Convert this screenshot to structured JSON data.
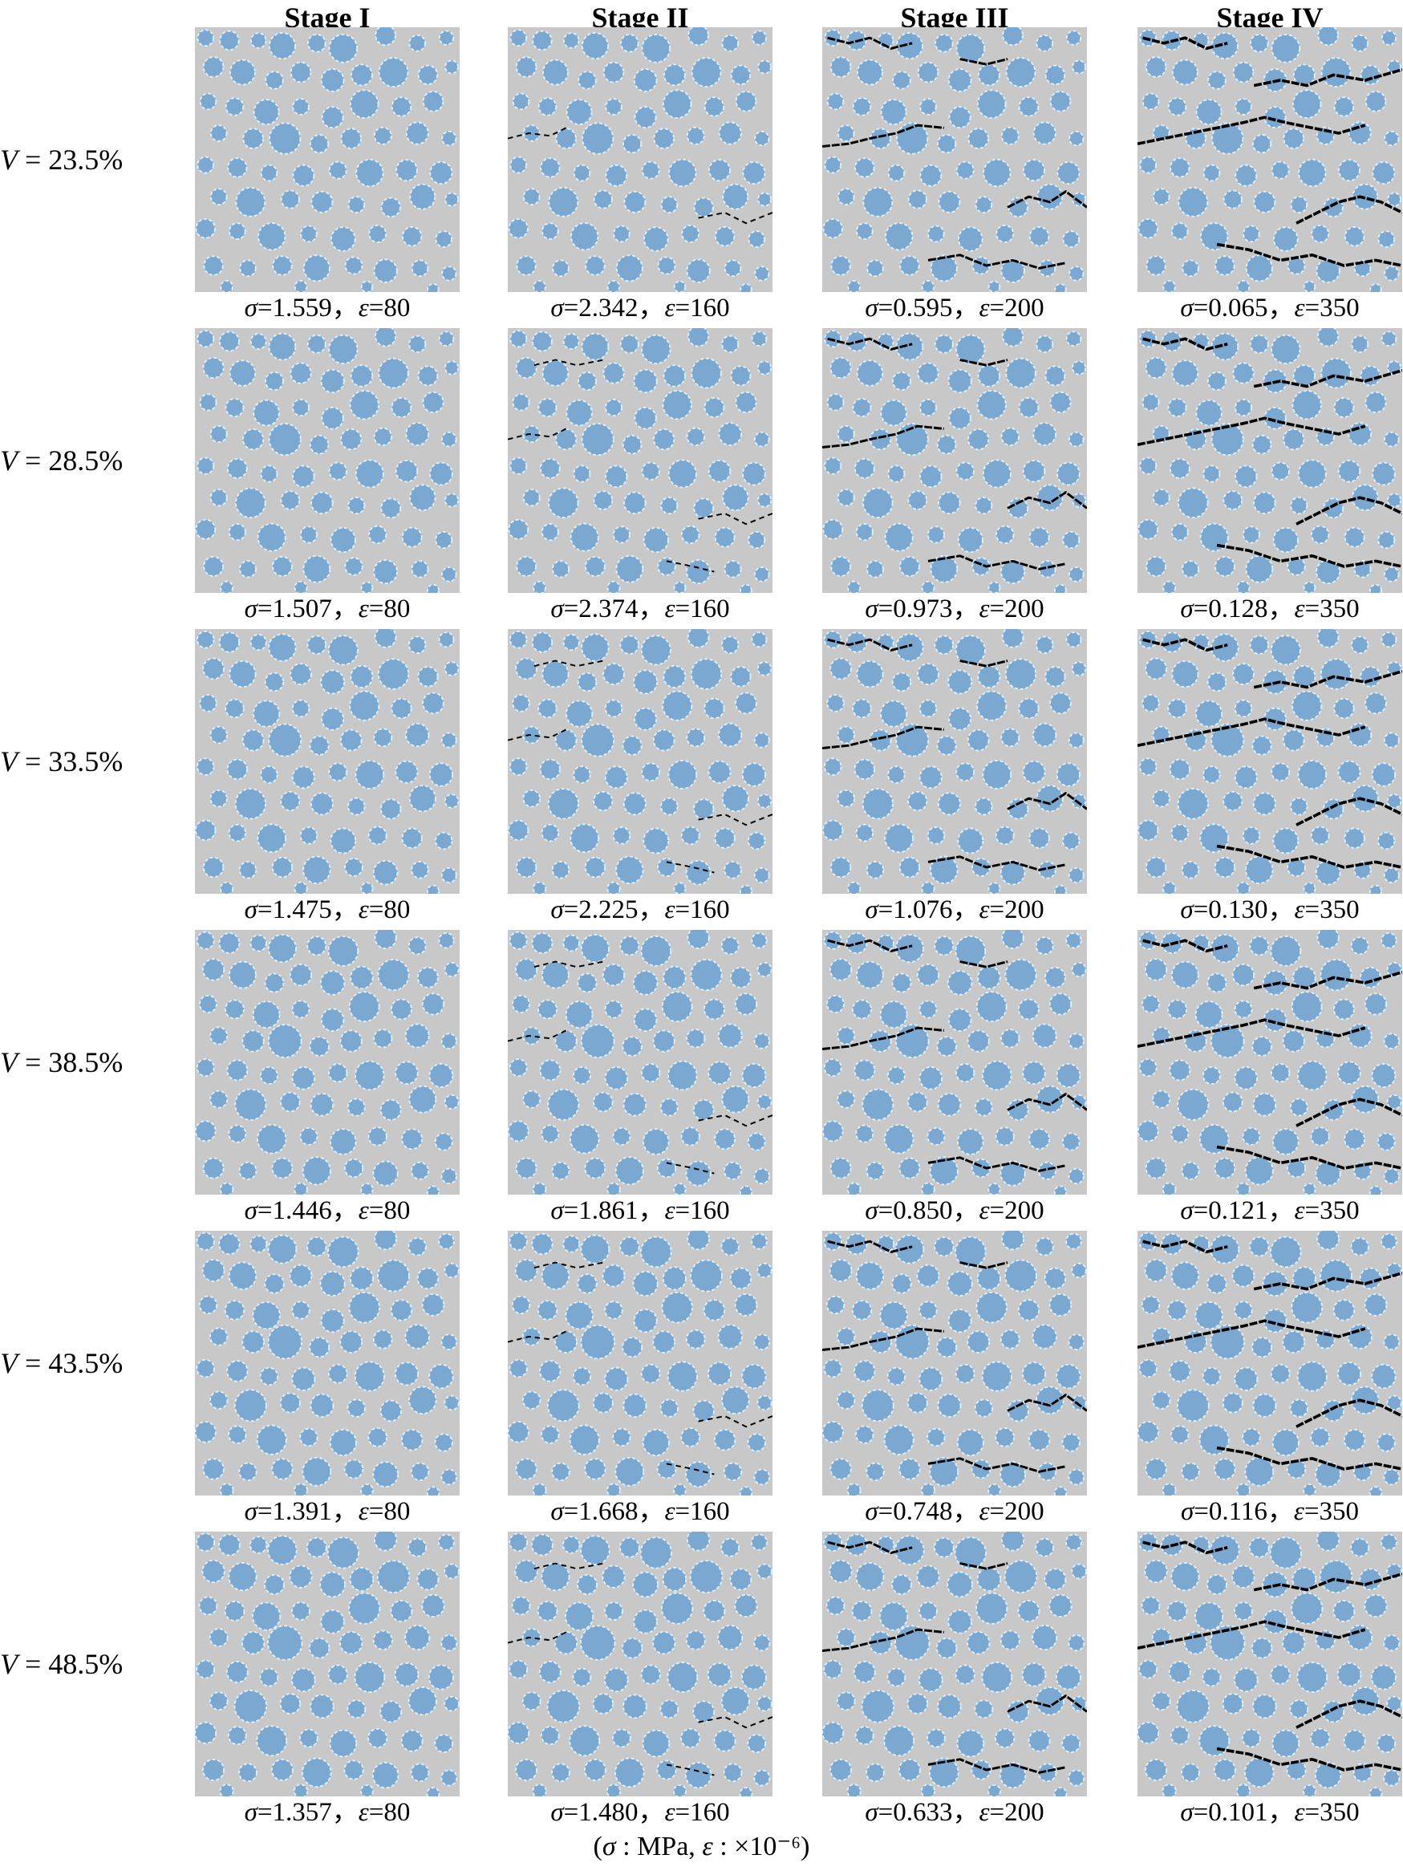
{
  "headers": [
    "Stage I",
    "Stage II",
    "Stage III",
    "Stage IV"
  ],
  "rows": [
    {
      "label_var": "V",
      "label_value": "= 23.5%",
      "captions": [
        {
          "sigma": "=1.559，",
          "eps": "=80"
        },
        {
          "sigma": "=2.342，",
          "eps": "=160"
        },
        {
          "sigma": "=0.595，",
          "eps": "=200"
        },
        {
          "sigma": "=0.065，",
          "eps": "=350"
        }
      ]
    },
    {
      "label_var": "V",
      "label_value": "= 28.5%",
      "captions": [
        {
          "sigma": "=1.507，",
          "eps": "=80"
        },
        {
          "sigma": "=2.374，",
          "eps": "=160"
        },
        {
          "sigma": "=0.973，",
          "eps": "=200"
        },
        {
          "sigma": "=0.128，",
          "eps": "=350"
        }
      ]
    },
    {
      "label_var": "V",
      "label_value": "= 33.5%",
      "captions": [
        {
          "sigma": "=1.475，",
          "eps": "=80"
        },
        {
          "sigma": "=2.225，",
          "eps": "=160"
        },
        {
          "sigma": "=1.076，",
          "eps": "=200"
        },
        {
          "sigma": "=0.130，",
          "eps": "=350"
        }
      ]
    },
    {
      "label_var": "V",
      "label_value": "= 38.5%",
      "captions": [
        {
          "sigma": "=1.446，",
          "eps": "=80"
        },
        {
          "sigma": "=1.861，",
          "eps": "=160"
        },
        {
          "sigma": "=0.850，",
          "eps": "=200"
        },
        {
          "sigma": "=0.121，",
          "eps": "=350"
        }
      ]
    },
    {
      "label_var": "V",
      "label_value": "= 43.5%",
      "captions": [
        {
          "sigma": "=1.391，",
          "eps": "=80"
        },
        {
          "sigma": "=1.668，",
          "eps": "=160"
        },
        {
          "sigma": "=0.748，",
          "eps": "=200"
        },
        {
          "sigma": "=0.116，",
          "eps": "=350"
        }
      ]
    },
    {
      "label_var": "V",
      "label_value": "= 48.5%",
      "captions": [
        {
          "sigma": "=1.357，",
          "eps": "=80"
        },
        {
          "sigma": "=1.480，",
          "eps": "=160"
        },
        {
          "sigma": "=0.633，",
          "eps": "=200"
        },
        {
          "sigma": "=0.101，",
          "eps": "=350"
        }
      ]
    }
  ],
  "symbols": {
    "sigma": "σ",
    "eps": "ε"
  },
  "units": {
    "open": "(",
    "sigma": "σ",
    "sigma_unit": ": MPa,",
    "eps": "ε",
    "eps_unit": ": ×10⁻⁶)"
  },
  "colors": {
    "matrix": "#c8c8c8",
    "aggregate": "#7aa8d0",
    "itz": "#ddeef8",
    "crack": "#000000"
  }
}
